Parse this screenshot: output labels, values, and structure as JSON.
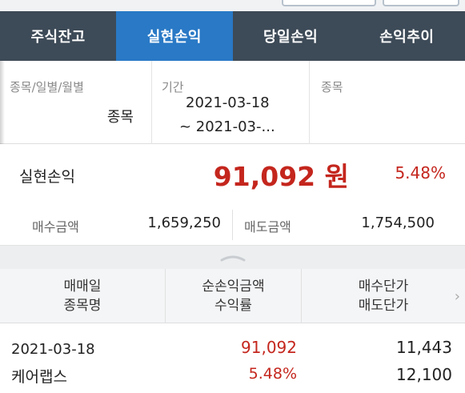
{
  "header": {
    "crumb": ""
  },
  "tabs": [
    {
      "label": "주식잔고",
      "active": false
    },
    {
      "label": "실현손익",
      "active": true
    },
    {
      "label": "당일손익",
      "active": false
    },
    {
      "label": "손익추이",
      "active": false
    }
  ],
  "filter": {
    "type_label": "종목/일별/월별",
    "type_value": "종목",
    "period_label": "기간",
    "period_start": "2021-03-18",
    "period_end": "~ 2021-03-...",
    "stock_label": "종목"
  },
  "summary": {
    "pl_label": "실현손익",
    "pl_value": "91,092 원",
    "pl_rate": "5.48%",
    "buy_label": "매수금액",
    "buy_value": "1,659,250",
    "sell_label": "매도금액",
    "sell_value": "1,754,500"
  },
  "table": {
    "headers": [
      {
        "line1": "매매일",
        "line2": "종목명"
      },
      {
        "line1": "순손익금액",
        "line2": "수익률"
      },
      {
        "line1": "매수단가",
        "line2": "매도단가"
      }
    ],
    "rows": [
      {
        "date": "2021-03-18",
        "name": "케어랩스",
        "net_pl": "91,092",
        "rate": "5.48%",
        "buy_price": "11,443",
        "sell_price": "12,100"
      }
    ]
  },
  "colors": {
    "tab_bar": "#3d4a57",
    "tab_active": "#2979c6",
    "profit_red": "#c4261d"
  }
}
